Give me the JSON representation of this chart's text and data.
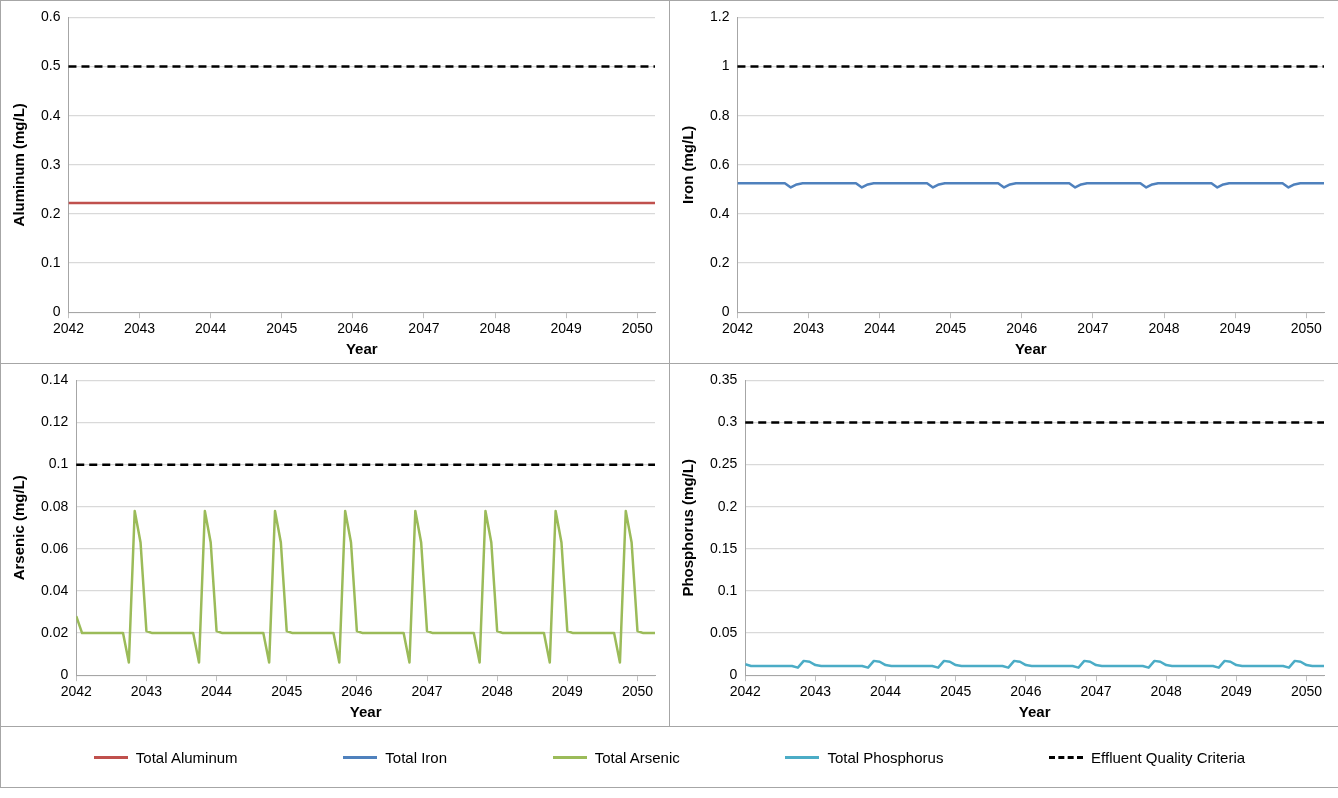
{
  "chart_data": [
    {
      "type": "line",
      "ylabel": "Aluminum (mg/L)",
      "xlabel": "Year",
      "xlim": [
        "2042-01",
        "2050-04"
      ],
      "xticks": [
        "2042",
        "2043",
        "2044",
        "2045",
        "2046",
        "2047",
        "2048",
        "2049",
        "2050"
      ],
      "ylim": [
        0,
        0.6
      ],
      "yticks": [
        0,
        0.1,
        0.2,
        0.3,
        0.4,
        0.5,
        0.6
      ],
      "grid": "y",
      "legend": "bottom",
      "series": [
        {
          "name": "Total Aluminum",
          "color": "#c0504d",
          "x": [
            "2042-01",
            "2050-04"
          ],
          "values": [
            0.222,
            0.222
          ]
        }
      ],
      "ref_lines": [
        {
          "axis": "y",
          "value": 0.5,
          "label": "Effluent Quality Criteria",
          "color": "#000000",
          "line_style": "dashed"
        }
      ]
    },
    {
      "type": "line",
      "ylabel": "Iron (mg/L)",
      "xlabel": "Year",
      "xlim": [
        "2042-01",
        "2050-04"
      ],
      "xticks": [
        "2042",
        "2043",
        "2044",
        "2045",
        "2046",
        "2047",
        "2048",
        "2049",
        "2050"
      ],
      "ylim": [
        0,
        1.2
      ],
      "yticks": [
        0,
        0.2,
        0.4,
        0.6,
        0.8,
        1,
        1.2
      ],
      "grid": "y",
      "legend": "bottom",
      "x": [
        "2042-01",
        "2042-02",
        "2042-03",
        "2042-04",
        "2042-05",
        "2042-06",
        "2042-07",
        "2042-08",
        "2042-09",
        "2042-10",
        "2042-11",
        "2042-12",
        "2043-01",
        "2043-02",
        "2043-03",
        "2043-04",
        "2043-05",
        "2043-06",
        "2043-07",
        "2043-08",
        "2043-09",
        "2043-10",
        "2043-11",
        "2043-12",
        "2044-01",
        "2044-02",
        "2044-03",
        "2044-04",
        "2044-05",
        "2044-06",
        "2044-07",
        "2044-08",
        "2044-09",
        "2044-10",
        "2044-11",
        "2044-12",
        "2045-01",
        "2045-02",
        "2045-03",
        "2045-04",
        "2045-05",
        "2045-06",
        "2045-07",
        "2045-08",
        "2045-09",
        "2045-10",
        "2045-11",
        "2045-12",
        "2046-01",
        "2046-02",
        "2046-03",
        "2046-04",
        "2046-05",
        "2046-06",
        "2046-07",
        "2046-08",
        "2046-09",
        "2046-10",
        "2046-11",
        "2046-12",
        "2047-01",
        "2047-02",
        "2047-03",
        "2047-04",
        "2047-05",
        "2047-06",
        "2047-07",
        "2047-08",
        "2047-09",
        "2047-10",
        "2047-11",
        "2047-12",
        "2048-01",
        "2048-02",
        "2048-03",
        "2048-04",
        "2048-05",
        "2048-06",
        "2048-07",
        "2048-08",
        "2048-09",
        "2048-10",
        "2048-11",
        "2048-12",
        "2049-01",
        "2049-02",
        "2049-03",
        "2049-04",
        "2049-05",
        "2049-06",
        "2049-07",
        "2049-08",
        "2049-09",
        "2049-10",
        "2049-11",
        "2049-12",
        "2050-01",
        "2050-02",
        "2050-03",
        "2050-04"
      ],
      "series": [
        {
          "name": "Total Iron",
          "color": "#4f81bd",
          "values": [
            0.525,
            0.525,
            0.525,
            0.525,
            0.525,
            0.525,
            0.525,
            0.525,
            0.525,
            0.508,
            0.52,
            0.525,
            0.525,
            0.525,
            0.525,
            0.525,
            0.525,
            0.525,
            0.525,
            0.525,
            0.525,
            0.508,
            0.52,
            0.525,
            0.525,
            0.525,
            0.525,
            0.525,
            0.525,
            0.525,
            0.525,
            0.525,
            0.525,
            0.508,
            0.52,
            0.525,
            0.525,
            0.525,
            0.525,
            0.525,
            0.525,
            0.525,
            0.525,
            0.525,
            0.525,
            0.508,
            0.52,
            0.525,
            0.525,
            0.525,
            0.525,
            0.525,
            0.525,
            0.525,
            0.525,
            0.525,
            0.525,
            0.508,
            0.52,
            0.525,
            0.525,
            0.525,
            0.525,
            0.525,
            0.525,
            0.525,
            0.525,
            0.525,
            0.525,
            0.508,
            0.52,
            0.525,
            0.525,
            0.525,
            0.525,
            0.525,
            0.525,
            0.525,
            0.525,
            0.525,
            0.525,
            0.508,
            0.52,
            0.525,
            0.525,
            0.525,
            0.525,
            0.525,
            0.525,
            0.525,
            0.525,
            0.525,
            0.525,
            0.508,
            0.52,
            0.525,
            0.525,
            0.525,
            0.525,
            0.525
          ]
        }
      ],
      "ref_lines": [
        {
          "axis": "y",
          "value": 1,
          "color": "#000000",
          "line_style": "dashed"
        }
      ]
    },
    {
      "type": "line",
      "ylabel": "Arsenic (mg/L)",
      "xlabel": "Year",
      "xlim": [
        "2042-01",
        "2050-04"
      ],
      "xticks": [
        "2042",
        "2043",
        "2044",
        "2045",
        "2046",
        "2047",
        "2048",
        "2049",
        "2050"
      ],
      "ylim": [
        0,
        0.14
      ],
      "yticks": [
        0,
        0.02,
        0.04,
        0.06,
        0.08,
        0.1,
        0.12,
        0.14
      ],
      "grid": "y",
      "legend": "bottom",
      "x": [
        "2042-01",
        "2042-02",
        "2042-03",
        "2042-04",
        "2042-05",
        "2042-06",
        "2042-07",
        "2042-08",
        "2042-09",
        "2042-10",
        "2042-11",
        "2042-12",
        "2043-01",
        "2043-02",
        "2043-03",
        "2043-04",
        "2043-05",
        "2043-06",
        "2043-07",
        "2043-08",
        "2043-09",
        "2043-10",
        "2043-11",
        "2043-12",
        "2044-01",
        "2044-02",
        "2044-03",
        "2044-04",
        "2044-05",
        "2044-06",
        "2044-07",
        "2044-08",
        "2044-09",
        "2044-10",
        "2044-11",
        "2044-12",
        "2045-01",
        "2045-02",
        "2045-03",
        "2045-04",
        "2045-05",
        "2045-06",
        "2045-07",
        "2045-08",
        "2045-09",
        "2045-10",
        "2045-11",
        "2045-12",
        "2046-01",
        "2046-02",
        "2046-03",
        "2046-04",
        "2046-05",
        "2046-06",
        "2046-07",
        "2046-08",
        "2046-09",
        "2046-10",
        "2046-11",
        "2046-12",
        "2047-01",
        "2047-02",
        "2047-03",
        "2047-04",
        "2047-05",
        "2047-06",
        "2047-07",
        "2047-08",
        "2047-09",
        "2047-10",
        "2047-11",
        "2047-12",
        "2048-01",
        "2048-02",
        "2048-03",
        "2048-04",
        "2048-05",
        "2048-06",
        "2048-07",
        "2048-08",
        "2048-09",
        "2048-10",
        "2048-11",
        "2048-12",
        "2049-01",
        "2049-02",
        "2049-03",
        "2049-04",
        "2049-05",
        "2049-06",
        "2049-07",
        "2049-08",
        "2049-09",
        "2049-10",
        "2049-11",
        "2049-12",
        "2050-01",
        "2050-02",
        "2050-03",
        "2050-04"
      ],
      "series": [
        {
          "name": "Total Arsenic",
          "color": "#9bbb59",
          "values": [
            0.028,
            0.02,
            0.02,
            0.02,
            0.02,
            0.02,
            0.02,
            0.02,
            0.02,
            0.006,
            0.078,
            0.063,
            0.021,
            0.02,
            0.02,
            0.02,
            0.02,
            0.02,
            0.02,
            0.02,
            0.02,
            0.006,
            0.078,
            0.063,
            0.021,
            0.02,
            0.02,
            0.02,
            0.02,
            0.02,
            0.02,
            0.02,
            0.02,
            0.006,
            0.078,
            0.063,
            0.021,
            0.02,
            0.02,
            0.02,
            0.02,
            0.02,
            0.02,
            0.02,
            0.02,
            0.006,
            0.078,
            0.063,
            0.021,
            0.02,
            0.02,
            0.02,
            0.02,
            0.02,
            0.02,
            0.02,
            0.02,
            0.006,
            0.078,
            0.063,
            0.021,
            0.02,
            0.02,
            0.02,
            0.02,
            0.02,
            0.02,
            0.02,
            0.02,
            0.006,
            0.078,
            0.063,
            0.021,
            0.02,
            0.02,
            0.02,
            0.02,
            0.02,
            0.02,
            0.02,
            0.02,
            0.006,
            0.078,
            0.063,
            0.021,
            0.02,
            0.02,
            0.02,
            0.02,
            0.02,
            0.02,
            0.02,
            0.02,
            0.006,
            0.078,
            0.063,
            0.021,
            0.02,
            0.02,
            0.02
          ]
        }
      ],
      "ref_lines": [
        {
          "axis": "y",
          "value": 0.1,
          "color": "#000000",
          "line_style": "dashed"
        }
      ]
    },
    {
      "type": "line",
      "ylabel": "Phosphorus (mg/L)",
      "xlabel": "Year",
      "xlim": [
        "2042-01",
        "2050-04"
      ],
      "xticks": [
        "2042",
        "2043",
        "2044",
        "2045",
        "2046",
        "2047",
        "2048",
        "2049",
        "2050"
      ],
      "ylim": [
        0,
        0.35
      ],
      "yticks": [
        0,
        0.05,
        0.1,
        0.15,
        0.2,
        0.25,
        0.3,
        0.35
      ],
      "grid": "y",
      "legend": "bottom",
      "x": [
        "2042-01",
        "2042-02",
        "2042-03",
        "2042-04",
        "2042-05",
        "2042-06",
        "2042-07",
        "2042-08",
        "2042-09",
        "2042-10",
        "2042-11",
        "2042-12",
        "2043-01",
        "2043-02",
        "2043-03",
        "2043-04",
        "2043-05",
        "2043-06",
        "2043-07",
        "2043-08",
        "2043-09",
        "2043-10",
        "2043-11",
        "2043-12",
        "2044-01",
        "2044-02",
        "2044-03",
        "2044-04",
        "2044-05",
        "2044-06",
        "2044-07",
        "2044-08",
        "2044-09",
        "2044-10",
        "2044-11",
        "2044-12",
        "2045-01",
        "2045-02",
        "2045-03",
        "2045-04",
        "2045-05",
        "2045-06",
        "2045-07",
        "2045-08",
        "2045-09",
        "2045-10",
        "2045-11",
        "2045-12",
        "2046-01",
        "2046-02",
        "2046-03",
        "2046-04",
        "2046-05",
        "2046-06",
        "2046-07",
        "2046-08",
        "2046-09",
        "2046-10",
        "2046-11",
        "2046-12",
        "2047-01",
        "2047-02",
        "2047-03",
        "2047-04",
        "2047-05",
        "2047-06",
        "2047-07",
        "2047-08",
        "2047-09",
        "2047-10",
        "2047-11",
        "2047-12",
        "2048-01",
        "2048-02",
        "2048-03",
        "2048-04",
        "2048-05",
        "2048-06",
        "2048-07",
        "2048-08",
        "2048-09",
        "2048-10",
        "2048-11",
        "2048-12",
        "2049-01",
        "2049-02",
        "2049-03",
        "2049-04",
        "2049-05",
        "2049-06",
        "2049-07",
        "2049-08",
        "2049-09",
        "2049-10",
        "2049-11",
        "2049-12",
        "2050-01",
        "2050-02",
        "2050-03",
        "2050-04"
      ],
      "series": [
        {
          "name": "Total Phosphorus",
          "color": "#4bacc6",
          "values": [
            0.013,
            0.011,
            0.011,
            0.011,
            0.011,
            0.011,
            0.011,
            0.011,
            0.011,
            0.009,
            0.017,
            0.016,
            0.012,
            0.011,
            0.011,
            0.011,
            0.011,
            0.011,
            0.011,
            0.011,
            0.011,
            0.009,
            0.017,
            0.016,
            0.012,
            0.011,
            0.011,
            0.011,
            0.011,
            0.011,
            0.011,
            0.011,
            0.011,
            0.009,
            0.017,
            0.016,
            0.012,
            0.011,
            0.011,
            0.011,
            0.011,
            0.011,
            0.011,
            0.011,
            0.011,
            0.009,
            0.017,
            0.016,
            0.012,
            0.011,
            0.011,
            0.011,
            0.011,
            0.011,
            0.011,
            0.011,
            0.011,
            0.009,
            0.017,
            0.016,
            0.012,
            0.011,
            0.011,
            0.011,
            0.011,
            0.011,
            0.011,
            0.011,
            0.011,
            0.009,
            0.017,
            0.016,
            0.012,
            0.011,
            0.011,
            0.011,
            0.011,
            0.011,
            0.011,
            0.011,
            0.011,
            0.009,
            0.017,
            0.016,
            0.012,
            0.011,
            0.011,
            0.011,
            0.011,
            0.011,
            0.011,
            0.011,
            0.011,
            0.009,
            0.017,
            0.016,
            0.012,
            0.011,
            0.011,
            0.011
          ]
        }
      ],
      "ref_lines": [
        {
          "axis": "y",
          "value": 0.3,
          "color": "#000000",
          "line_style": "dashed"
        }
      ]
    }
  ]
}
